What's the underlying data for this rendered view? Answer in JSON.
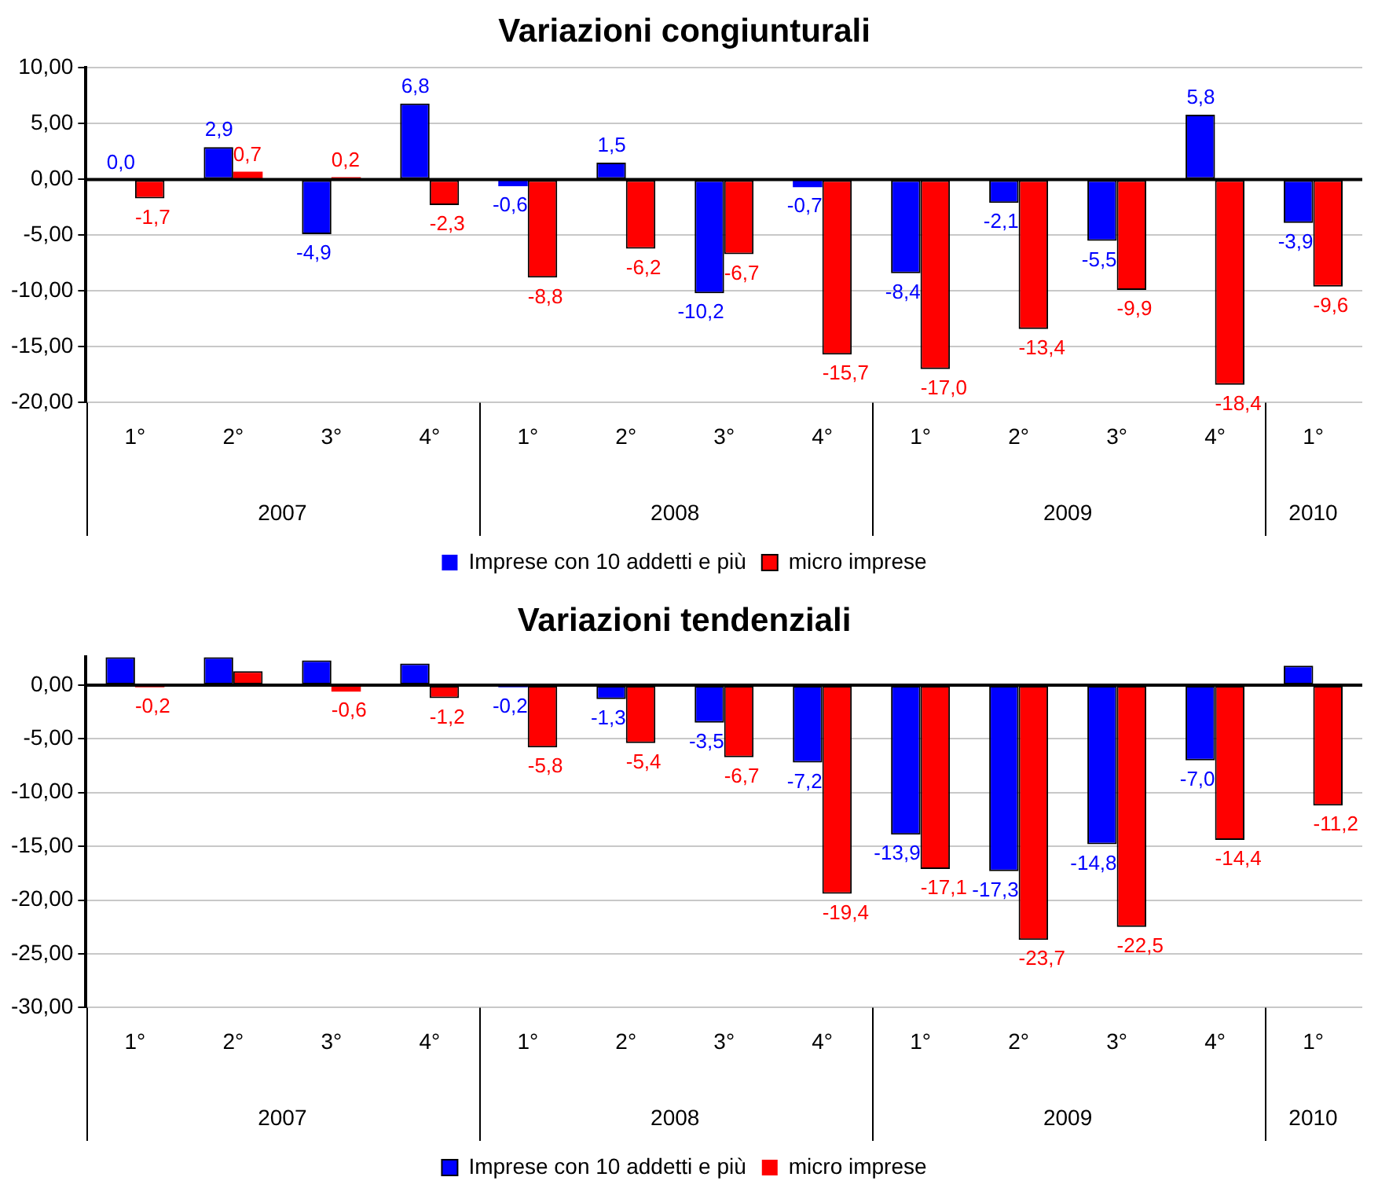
{
  "chart_data": [
    {
      "type": "bar",
      "title": "Variazioni congiunturali",
      "categories": [
        "1°",
        "2°",
        "3°",
        "4°",
        "1°",
        "2°",
        "3°",
        "4°",
        "1°",
        "2°",
        "3°",
        "4°",
        "1°"
      ],
      "series": [
        {
          "name": "Imprese con 10 addetti e più",
          "color": "#0000ff",
          "values": [
            0.0,
            2.9,
            -4.9,
            6.8,
            -0.6,
            1.5,
            -10.2,
            -0.7,
            -8.4,
            -2.1,
            -5.5,
            5.8,
            -3.9
          ],
          "value_labels": [
            "0,0",
            "2,9",
            "-4,9",
            "6,8",
            "-0,6",
            "1,5",
            "-10,2",
            "-0,7",
            "-8,4",
            "-2,1",
            "-5,5",
            "5,8",
            "-3,9"
          ]
        },
        {
          "name": "micro imprese",
          "color": "#ff0000",
          "values": [
            -1.7,
            0.7,
            0.2,
            -2.3,
            -8.8,
            -6.2,
            -6.7,
            -15.7,
            -17.0,
            -13.4,
            -9.9,
            -18.4,
            -9.6
          ],
          "value_labels": [
            "-1,7",
            "0,7",
            "0,2",
            "-2,3",
            "-8,8",
            "-6,2",
            "-6,7",
            "-15,7",
            "-17,0",
            "-13,4",
            "-9,9",
            "-18,4",
            "-9,6"
          ]
        }
      ],
      "ylim": [
        -20,
        10
      ],
      "yticks": [
        {
          "value": -20,
          "label": "-20,00"
        },
        {
          "value": -15,
          "label": "-15,00"
        },
        {
          "value": -10,
          "label": "-10,00"
        },
        {
          "value": -5,
          "label": "-5,00"
        },
        {
          "value": 0,
          "label": "0,00"
        },
        {
          "value": 5,
          "label": "5,00"
        },
        {
          "value": 10,
          "label": "10,00"
        }
      ],
      "grid": "y",
      "legend": "bottom",
      "annotations": [
        "2007",
        "2008",
        "2009",
        "2010"
      ]
    },
    {
      "type": "bar",
      "title": "Variazioni tendenziali",
      "categories": [
        "1°",
        "2°",
        "3°",
        "4°",
        "1°",
        "2°",
        "3°",
        "4°",
        "1°",
        "2°",
        "3°",
        "4°",
        "1°"
      ],
      "series": [
        {
          "name": "Imprese con 10 addetti e più",
          "color": "#0000ff",
          "values": [
            2.6,
            2.6,
            2.3,
            2.0,
            -0.2,
            -1.3,
            -3.5,
            -7.2,
            -13.9,
            -17.3,
            -14.8,
            -7.0,
            1.8
          ],
          "value_labels": [
            null,
            null,
            null,
            null,
            "-0,2",
            "-1,3",
            "-3,5",
            "-7,2",
            "-13,9",
            "-17,3",
            "-14,8",
            "-7,0",
            null
          ]
        },
        {
          "name": "micro imprese",
          "color": "#ff0000",
          "values": [
            -0.2,
            1.3,
            -0.6,
            -1.2,
            -5.8,
            -5.4,
            -6.7,
            -19.4,
            -17.1,
            -23.7,
            -22.5,
            -14.4,
            -11.2
          ],
          "value_labels": [
            "-0,2",
            null,
            "-0,6",
            "-1,2",
            "-5,8",
            "-5,4",
            "-6,7",
            "-19,4",
            "-17,1",
            "-23,7",
            "-22,5",
            "-14,4",
            "-11,2"
          ]
        }
      ],
      "ylim": [
        -30,
        2.6
      ],
      "yticks": [
        {
          "value": -30,
          "label": "-30,00"
        },
        {
          "value": -25,
          "label": "-25,00"
        },
        {
          "value": -20,
          "label": "-20,00"
        },
        {
          "value": -15,
          "label": "-15,00"
        },
        {
          "value": -10,
          "label": "-10,00"
        },
        {
          "value": -5,
          "label": "-5,00"
        },
        {
          "value": 0,
          "label": "0,00"
        }
      ],
      "grid": "y",
      "legend": "bottom",
      "annotations": [
        "2007",
        "2008",
        "2009",
        "2010"
      ]
    }
  ]
}
